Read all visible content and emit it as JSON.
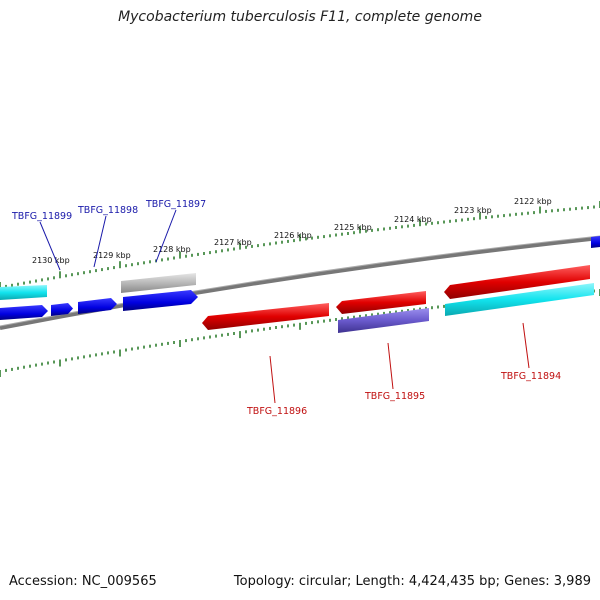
{
  "title": "Mycobacterium tuberculosis F11, complete genome",
  "footer": {
    "accession": "Accession: NC_009565",
    "summary": "Topology: circular; Length: 4,424,435 bp; Genes: 3,989"
  },
  "ruler": {
    "labels": [
      "2130 kbp",
      "2129 kbp",
      "2128 kbp",
      "2127 kbp",
      "2126 kbp",
      "2125 kbp",
      "2124 kbp",
      "2123 kbp",
      "2122 kbp"
    ],
    "major_tick_color": "#2e7d2e",
    "minor_tick_color": "#2e7d2e"
  },
  "genes": {
    "top_labels": [
      "TBFG_11899",
      "TBFG_11898",
      "TBFG_11897"
    ],
    "bottom_labels": [
      "TBFG_11896",
      "TBFG_11895",
      "TBFG_11894"
    ],
    "forward_label_color": "#1a1aaa",
    "reverse_label_color": "#c01010"
  },
  "colors": {
    "backbone": "#777777",
    "forward_cds": "#0a0af0",
    "reverse_cds": "#e01010",
    "cyan_feature": "#19e6f0",
    "grey_feature": "#b8b8b8",
    "purple_feature": "#6a5acd"
  }
}
